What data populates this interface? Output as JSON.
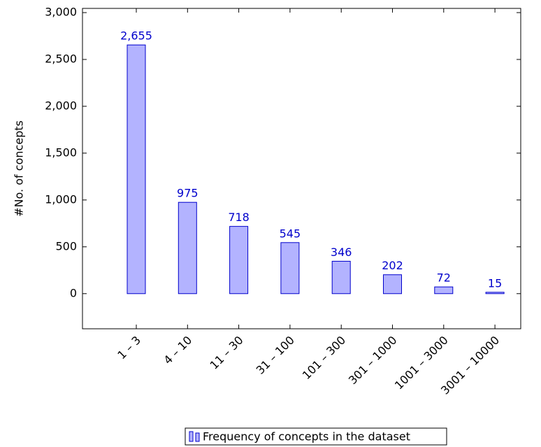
{
  "chart_data": {
    "type": "bar",
    "y_label": "#No. of concepts",
    "categories": [
      "1 – 3",
      "4 – 10",
      "11 – 30",
      "31 – 100",
      "101 – 300",
      "301 – 1000",
      "1001 – 3000",
      "3001 – 10000"
    ],
    "series": [
      {
        "name": "Frequency of concepts in the dataset",
        "color": "#b3b3ff",
        "edge_color": "#0000cc",
        "values": [
          2655,
          975,
          718,
          545,
          346,
          202,
          72,
          15
        ],
        "value_labels": [
          "2,655",
          "975",
          "718",
          "545",
          "346",
          "202",
          "72",
          "15"
        ]
      }
    ],
    "ylim": [
      -375,
      3045
    ],
    "yticks": [
      0,
      500,
      {
        "value": 1000,
        "label": "1,000"
      },
      {
        "value": 1500,
        "label": "1,500"
      },
      {
        "value": 2000,
        "label": "2,000"
      },
      {
        "value": 2500,
        "label": "2,500"
      },
      {
        "value": 3000,
        "label": "3,000"
      }
    ],
    "legend": "bottom"
  }
}
